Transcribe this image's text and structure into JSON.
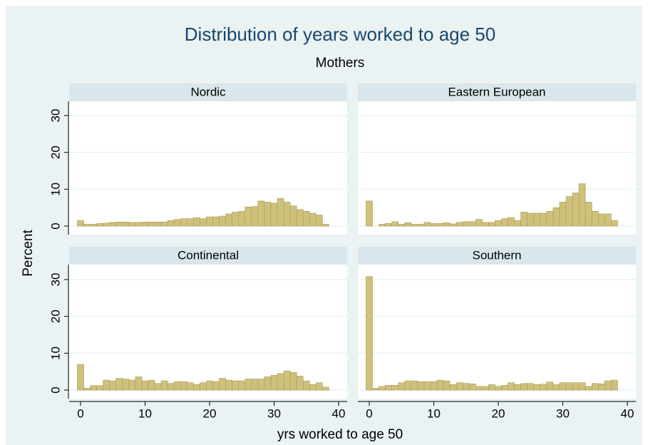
{
  "chart_data": {
    "type": "histogram",
    "title": "Distribution of years worked to age 50",
    "subtitle": "Mothers",
    "xlabel": "yrs worked to age 50",
    "ylabel": "Percent",
    "color": "#cfc17b",
    "edge_color": "#a8995a",
    "grid": true,
    "xlim": [
      0,
      40
    ],
    "ylim": [
      0,
      30
    ],
    "xticks": [
      0,
      10,
      20,
      30,
      40
    ],
    "yticks": [
      0,
      10,
      20,
      30
    ],
    "bins": [
      -0.5,
      0.5,
      1.5,
      2.5,
      3.5,
      4.5,
      5.5,
      6.5,
      7.5,
      8.5,
      9.5,
      10.5,
      11.5,
      12.5,
      13.5,
      14.5,
      15.5,
      16.5,
      17.5,
      18.5,
      19.5,
      20.5,
      21.5,
      22.5,
      23.5,
      24.5,
      25.5,
      26.5,
      27.5,
      28.5,
      29.5,
      30.5,
      31.5,
      32.5,
      33.5,
      34.5,
      35.5,
      36.5,
      37.5,
      38.5
    ],
    "panels": [
      {
        "name": "Nordic",
        "values": [
          1.5,
          0.5,
          0.5,
          0.7,
          0.8,
          1,
          1.1,
          1.1,
          1,
          1,
          1.1,
          1.1,
          1.1,
          1.1,
          1.5,
          1.8,
          2,
          2,
          2.3,
          2,
          2.5,
          2.5,
          2.7,
          3.3,
          3.8,
          4,
          5.2,
          5.3,
          6.8,
          6.5,
          6.2,
          7.5,
          6.5,
          5.5,
          4.5,
          4,
          3.5,
          3,
          0.5
        ]
      },
      {
        "name": "Eastern European",
        "values": [
          6.8,
          0,
          0.5,
          0.7,
          1.2,
          0.5,
          0.9,
          0.5,
          0.5,
          1,
          0.7,
          0.7,
          0.9,
          0.6,
          1,
          1.2,
          1.2,
          1.8,
          1,
          1,
          1.5,
          2,
          2.3,
          1.5,
          3.8,
          3.5,
          3.5,
          3.5,
          4,
          5,
          6.5,
          8,
          9,
          11.5,
          6.5,
          4,
          3.3,
          3.3,
          1.5
        ]
      },
      {
        "name": "Continental",
        "values": [
          7,
          0.5,
          1.2,
          1.2,
          2.7,
          2.5,
          3.2,
          3,
          2.7,
          3.6,
          2.5,
          2.7,
          1.8,
          2.5,
          1.8,
          2.3,
          2.3,
          2,
          1.5,
          2,
          2.5,
          2.3,
          3.2,
          2.7,
          2.5,
          2.5,
          3,
          3,
          3,
          3.6,
          4,
          4.5,
          5.2,
          4.8,
          3.8,
          2.5,
          1.5,
          2,
          0.8
        ]
      },
      {
        "name": "Southern",
        "values": [
          30.8,
          0.5,
          1,
          1.3,
          1.3,
          2,
          2.5,
          2.5,
          2.3,
          2.3,
          2.3,
          2.7,
          2.5,
          1.5,
          2,
          1.8,
          1.7,
          1,
          1,
          1.5,
          1,
          1.3,
          2,
          1.5,
          1.8,
          1.8,
          1.5,
          1.6,
          2.2,
          1.5,
          2,
          2,
          2,
          2,
          1,
          1.8,
          1.7,
          2.5,
          2.7
        ]
      }
    ]
  }
}
